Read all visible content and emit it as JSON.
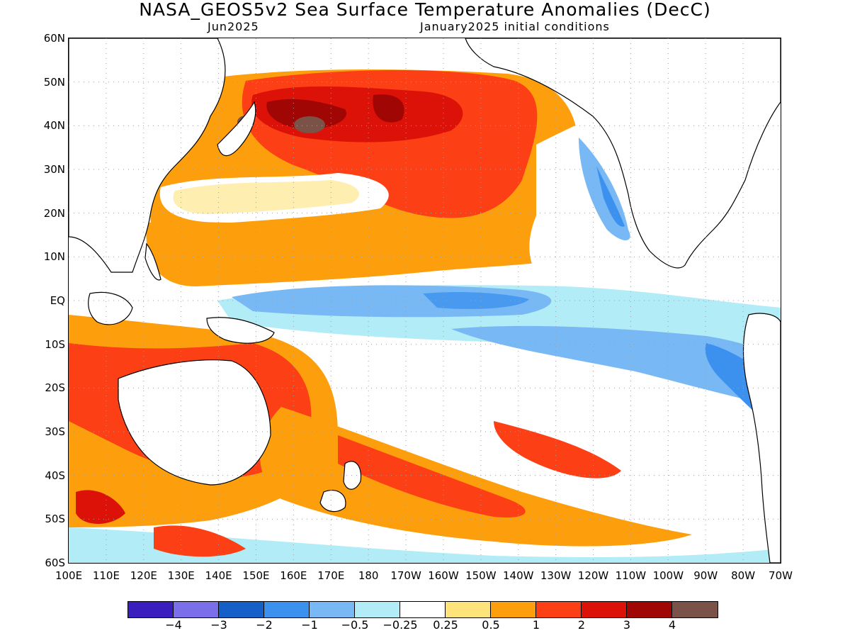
{
  "header": {
    "title": "NASA_GEOS5v2 Sea Surface Temperature Anomalies (DecC)",
    "forecast_month": "Jun2025",
    "initial_conditions": "January2025 initial conditions"
  },
  "map": {
    "lat_labels": [
      "60N",
      "50N",
      "40N",
      "30N",
      "20N",
      "10N",
      "EQ",
      "10S",
      "20S",
      "30S",
      "40S",
      "50S",
      "60S"
    ],
    "lon_labels": [
      "100E",
      "110E",
      "120E",
      "130E",
      "140E",
      "150E",
      "160E",
      "170E",
      "180",
      "170W",
      "160W",
      "150W",
      "140W",
      "130W",
      "120W",
      "110W",
      "100W",
      "90W",
      "80W",
      "70W"
    ],
    "features": {
      "kuroshio_extension_warm_core": "north_pacific_40N_160E",
      "equatorial_cold_tongue": "eq_170E_to_90W",
      "peru_chile_coastal_cold": "10S_to_30S_east_pacific",
      "australia_surround_warm": "10S_to_40S_100E_to_180"
    }
  },
  "colorbar": {
    "colors": [
      "#3b1fbe",
      "#7a6fe8",
      "#1460c8",
      "#3c91ef",
      "#78b9f5",
      "#b1ecf7",
      "#ffffff",
      "#fde37a",
      "#fd9f0c",
      "#fc3f14",
      "#dc1208",
      "#a00603",
      "#7b5247"
    ],
    "labels": [
      "−4",
      "−3",
      "−2",
      "−1",
      "−0.5",
      "−0.25",
      "0.25",
      "0.5",
      "1",
      "2",
      "3",
      "4"
    ]
  }
}
